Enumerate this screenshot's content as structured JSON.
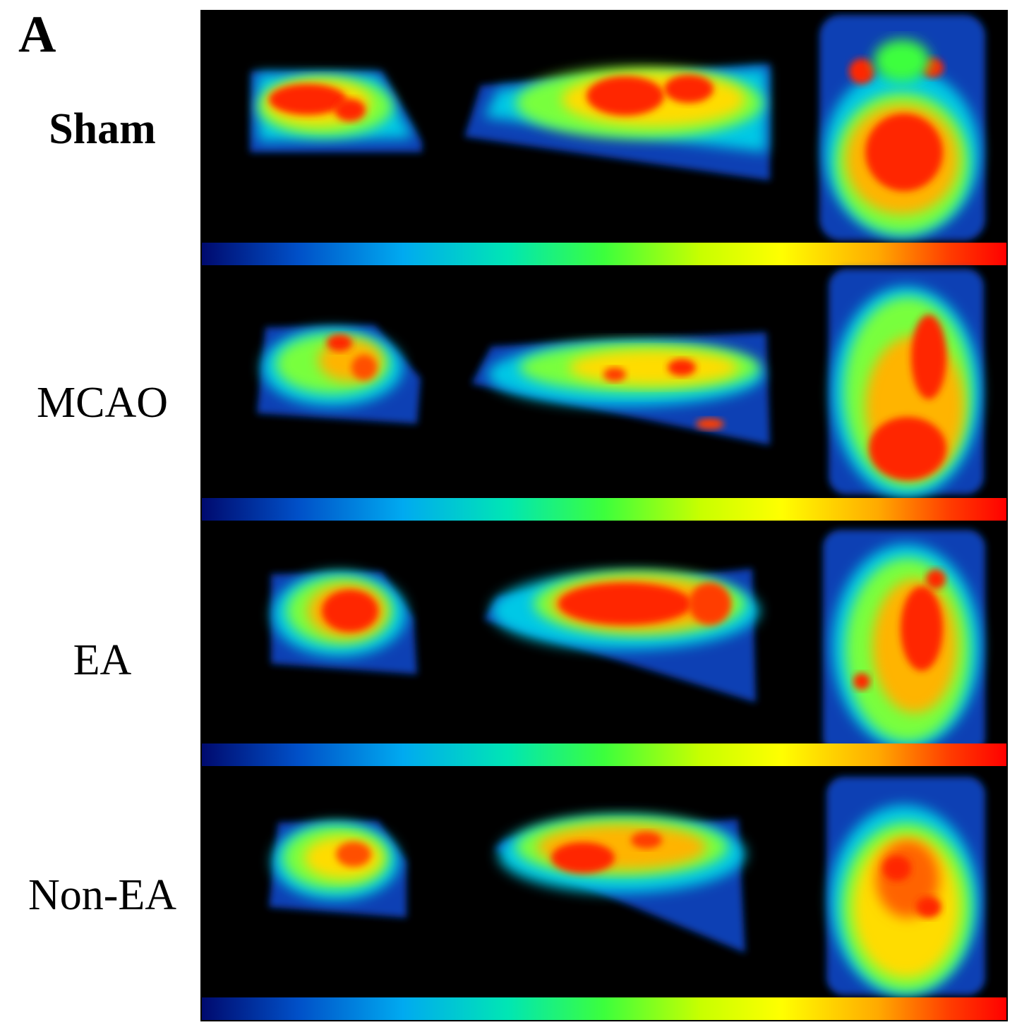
{
  "panel_letter": "A",
  "rows": [
    {
      "label": "Sham"
    },
    {
      "label": "MCAO"
    },
    {
      "label": "EA"
    },
    {
      "label": "Non-EA"
    }
  ],
  "colormap": [
    "#000a6e",
    "#0050c8",
    "#00aaf0",
    "#00e6b4",
    "#3cff3c",
    "#c8ff00",
    "#ffff00",
    "#ffaa00",
    "#ff3c00",
    "#ff0000"
  ],
  "views_per_row": 3
}
